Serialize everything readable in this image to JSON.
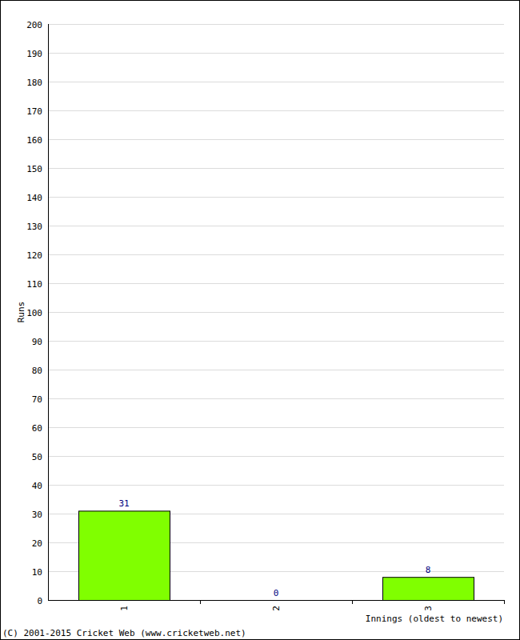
{
  "chart_data": {
    "type": "bar",
    "categories": [
      "1",
      "2",
      "3"
    ],
    "values": [
      31,
      0,
      8
    ],
    "color": "#80ff00",
    "ylim": [
      0,
      200
    ],
    "yticks": [
      0,
      10,
      20,
      30,
      40,
      50,
      60,
      70,
      80,
      90,
      100,
      110,
      120,
      130,
      140,
      150,
      160,
      170,
      180,
      190,
      200
    ],
    "grid": true,
    "data_labels": true,
    "x_label": "Innings (oldest to newest)",
    "y_label": "Runs",
    "annotation": "(C) 2001-2015 Cricket Web (www.cricketweb.net)"
  }
}
